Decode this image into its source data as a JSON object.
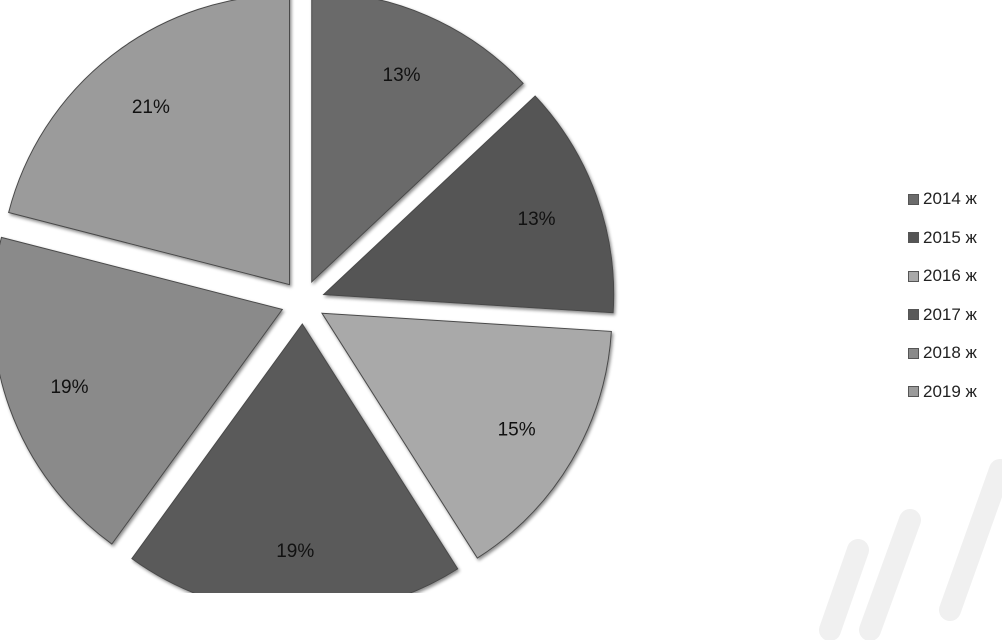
{
  "chart_data": {
    "type": "pie",
    "categories": [
      "2014 ж",
      "2015 ж",
      "2016 ж",
      "2017 ж",
      "2018 ж",
      "2019 ж"
    ],
    "values": [
      13,
      13,
      15,
      19,
      19,
      21
    ],
    "labels": [
      "13%",
      "13%",
      "15%",
      "19%",
      "19%",
      "21%"
    ],
    "colors": [
      "#6b6b6b",
      "#555555",
      "#a9a9a9",
      "#5a5a5a",
      "#8a8a8a",
      "#9b9b9b"
    ],
    "exploded": true,
    "legend_position": "right"
  }
}
